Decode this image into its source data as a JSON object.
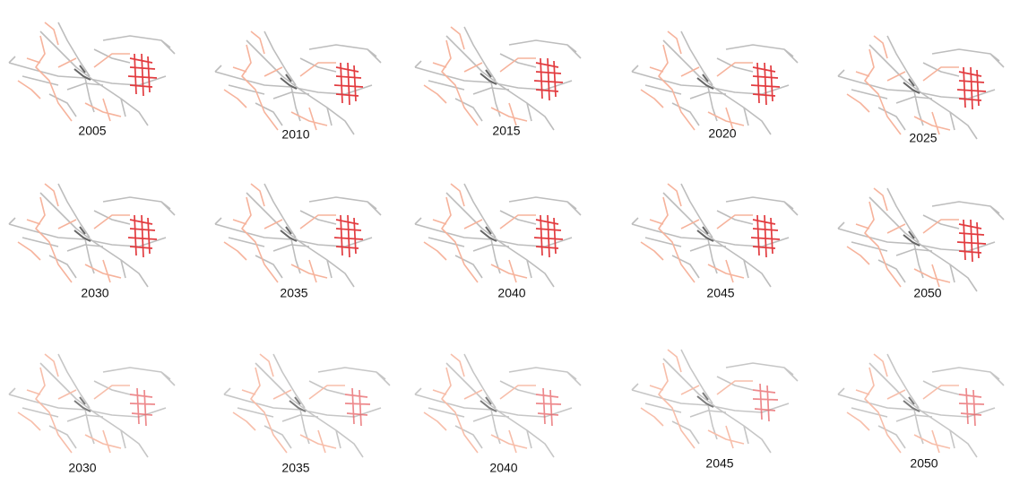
{
  "panels": [
    {
      "label": "2005"
    },
    {
      "label": "2010"
    },
    {
      "label": "2015"
    },
    {
      "label": "2020"
    },
    {
      "label": "2025"
    },
    {
      "label": "2030"
    },
    {
      "label": "2035"
    },
    {
      "label": "2040"
    },
    {
      "label": "2045"
    },
    {
      "label": "2050"
    },
    {
      "label": "2030"
    },
    {
      "label": "2035"
    },
    {
      "label": "2040"
    },
    {
      "label": "2045"
    },
    {
      "label": "2050"
    }
  ]
}
